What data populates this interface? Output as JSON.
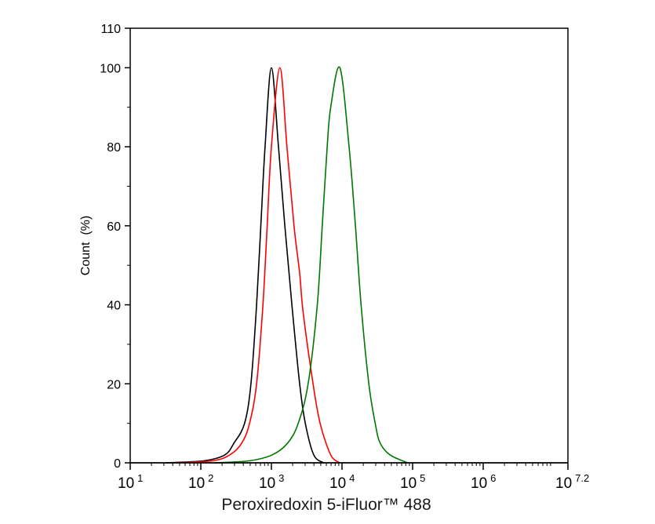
{
  "chart_data": {
    "type": "line",
    "title": "",
    "xlabel": "Peroxiredoxin 5-iFluor™ 488",
    "ylabel": "Count  (%)",
    "xscale": "log",
    "xlim_log10": [
      1,
      7.2
    ],
    "ylim": [
      0,
      110
    ],
    "x_ticks": [
      {
        "base": "10",
        "exp": "1",
        "log10": 1
      },
      {
        "base": "10",
        "exp": "2",
        "log10": 2
      },
      {
        "base": "10",
        "exp": "3",
        "log10": 3
      },
      {
        "base": "10",
        "exp": "4",
        "log10": 4
      },
      {
        "base": "10",
        "exp": "5",
        "log10": 5
      },
      {
        "base": "10",
        "exp": "6",
        "log10": 6
      },
      {
        "base": "10",
        "exp": "7.2",
        "log10": 7.2
      }
    ],
    "y_ticks": [
      0,
      20,
      40,
      60,
      80,
      100,
      110
    ],
    "grid": false,
    "legend": "none",
    "series": [
      {
        "color": "#000000",
        "points_log10x_y": [
          [
            1.5,
            0
          ],
          [
            2.04,
            0.5
          ],
          [
            2.34,
            2
          ],
          [
            2.47,
            5
          ],
          [
            2.62,
            10
          ],
          [
            2.71,
            20
          ],
          [
            2.79,
            40
          ],
          [
            2.85,
            60
          ],
          [
            2.91,
            80
          ],
          [
            3.0,
            100
          ],
          [
            3.1,
            80
          ],
          [
            3.19,
            60
          ],
          [
            3.29,
            40
          ],
          [
            3.4,
            20
          ],
          [
            3.48,
            10
          ],
          [
            3.6,
            2
          ],
          [
            3.74,
            0
          ]
        ]
      },
      {
        "color": "#ff0000",
        "points_log10x_y": [
          [
            1.6,
            0
          ],
          [
            2.16,
            0.5
          ],
          [
            2.41,
            2
          ],
          [
            2.58,
            5
          ],
          [
            2.69,
            10
          ],
          [
            2.79,
            20
          ],
          [
            2.88,
            40
          ],
          [
            2.94,
            60
          ],
          [
            3.0,
            80
          ],
          [
            3.12,
            100
          ],
          [
            3.22,
            80
          ],
          [
            3.32,
            60
          ],
          [
            3.4,
            48
          ],
          [
            3.45,
            38
          ],
          [
            3.59,
            20
          ],
          [
            3.69,
            10
          ],
          [
            3.84,
            2
          ],
          [
            3.97,
            0
          ]
        ]
      },
      {
        "color": "#007700",
        "points_log10x_y": [
          [
            2.19,
            0
          ],
          [
            2.68,
            0.5
          ],
          [
            3.01,
            2
          ],
          [
            3.23,
            5
          ],
          [
            3.38,
            10
          ],
          [
            3.52,
            20
          ],
          [
            3.65,
            40
          ],
          [
            3.72,
            60
          ],
          [
            3.79,
            80
          ],
          [
            3.84,
            90
          ],
          [
            3.97,
            100
          ],
          [
            4.1,
            80
          ],
          [
            4.19,
            60
          ],
          [
            4.27,
            40
          ],
          [
            4.38,
            20
          ],
          [
            4.47,
            10
          ],
          [
            4.54,
            5
          ],
          [
            4.68,
            2
          ],
          [
            4.93,
            0
          ]
        ]
      }
    ]
  }
}
